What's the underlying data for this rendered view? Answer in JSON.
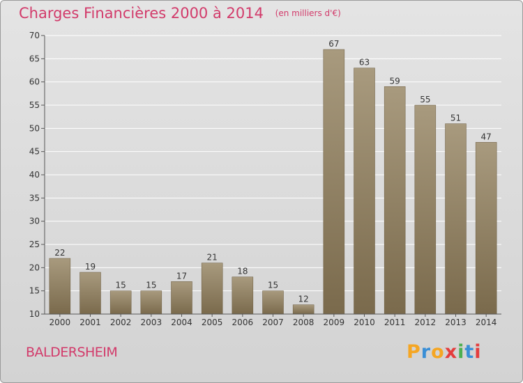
{
  "header": {
    "title": "Charges Financières 2000 à 2014",
    "subtitle": "(en milliers d'€)"
  },
  "footer": {
    "place": "BALDERSHEIM",
    "logo_letters": [
      "P",
      "r",
      "o",
      "x",
      "i",
      "t",
      "i"
    ],
    "logo_colors": [
      "#f5a623",
      "#3a8fd6",
      "#f5a623",
      "#e43d3d",
      "#4caf50",
      "#3a8fd6",
      "#e43d3d"
    ]
  },
  "colors": {
    "bar_top": "#a89a7e",
    "bar_bottom": "#7a6a4c",
    "accent": "#d23a6a"
  },
  "chart_data": {
    "type": "bar",
    "title": "Charges Financières 2000 à 2014",
    "subtitle": "(en milliers d'€)",
    "categories": [
      "2000",
      "2001",
      "2002",
      "2003",
      "2004",
      "2005",
      "2006",
      "2007",
      "2008",
      "2009",
      "2010",
      "2011",
      "2012",
      "2013",
      "2014"
    ],
    "values": [
      22,
      19,
      15,
      15,
      17,
      21,
      18,
      15,
      12,
      67,
      63,
      59,
      55,
      51,
      47
    ],
    "ylim": [
      10,
      70
    ],
    "yticks": [
      10,
      15,
      20,
      25,
      30,
      35,
      40,
      45,
      50,
      55,
      60,
      65,
      70
    ],
    "grid": true,
    "xlabel": "",
    "ylabel": ""
  }
}
